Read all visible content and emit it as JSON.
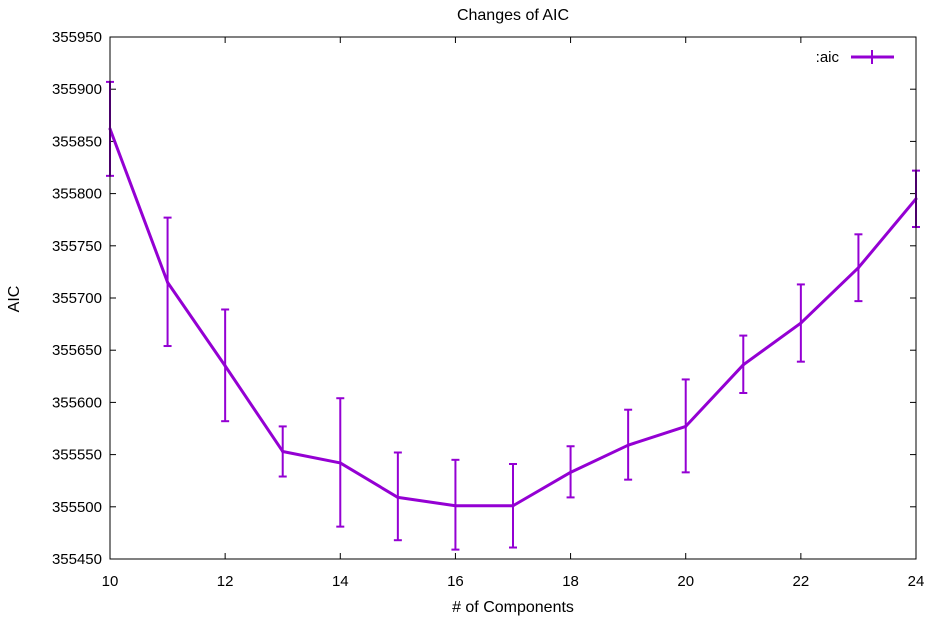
{
  "chart_data": {
    "type": "line",
    "title": "Changes of AIC",
    "xlabel": "# of Components",
    "ylabel": "AIC",
    "xlim": [
      10,
      24
    ],
    "ylim": [
      355450,
      355950
    ],
    "xticks": [
      10,
      12,
      14,
      16,
      18,
      20,
      22,
      24
    ],
    "yticks": [
      355450,
      355500,
      355550,
      355600,
      355650,
      355700,
      355750,
      355800,
      355850,
      355900,
      355950
    ],
    "grid": false,
    "legend_position": "top-right",
    "series": [
      {
        "name": ":aic",
        "color": "#9400d3",
        "x": [
          10,
          11,
          12,
          13,
          14,
          15,
          16,
          17,
          18,
          19,
          20,
          21,
          22,
          23,
          24
        ],
        "y": [
          355862,
          355715,
          355635,
          355553,
          355542,
          355509,
          355501,
          355501,
          355533,
          355559,
          355577,
          355636,
          355676,
          355729,
          355795
        ],
        "y_low": [
          355817,
          355654,
          355582,
          355529,
          355481,
          355468,
          355459,
          355461,
          355509,
          355526,
          355533,
          355609,
          355639,
          355697,
          355768
        ],
        "y_high": [
          355907,
          355777,
          355689,
          355577,
          355604,
          355552,
          355545,
          355541,
          355558,
          355593,
          355622,
          355664,
          355713,
          355761,
          355822
        ]
      }
    ]
  }
}
